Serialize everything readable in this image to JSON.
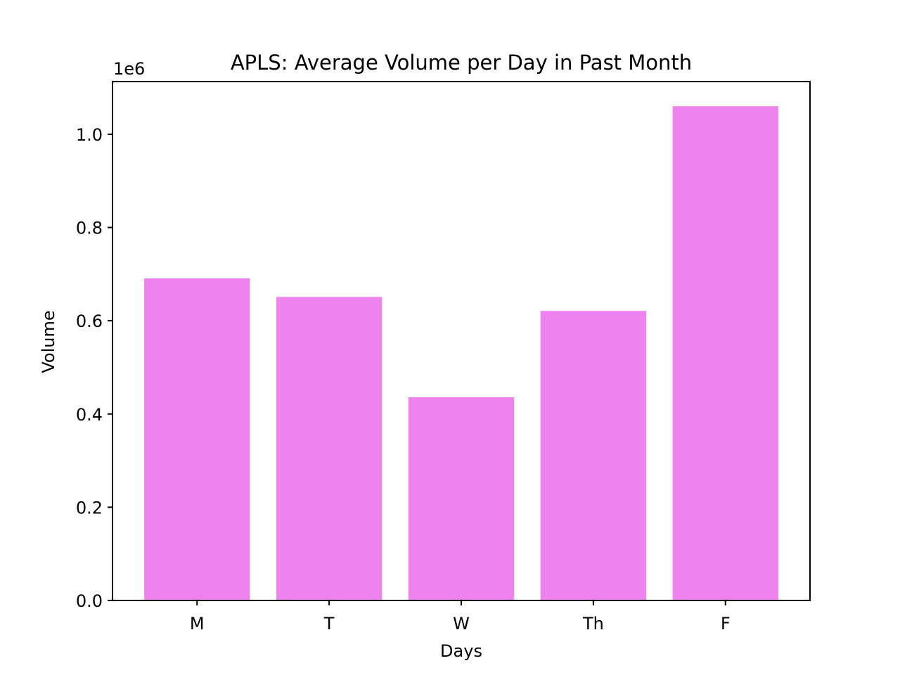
{
  "chart_data": {
    "type": "bar",
    "title": "APLS: Average Volume per Day in Past Month",
    "xlabel": "Days",
    "ylabel": "Volume",
    "categories": [
      "M",
      "T",
      "W",
      "Th",
      "F"
    ],
    "values": [
      691000,
      651000,
      436000,
      621000,
      1060000
    ],
    "ylim": [
      0,
      1113000
    ],
    "y_ticks": [
      0.0,
      0.2,
      0.4,
      0.6,
      0.8,
      1.0
    ],
    "y_tick_labels": [
      "0.0",
      "0.2",
      "0.4",
      "0.6",
      "0.8",
      "1.0"
    ],
    "y_scale_multiplier": 1000000,
    "offset_text": "1e6",
    "bar_color": "#ee82ee",
    "grid": false,
    "legend": "none"
  }
}
